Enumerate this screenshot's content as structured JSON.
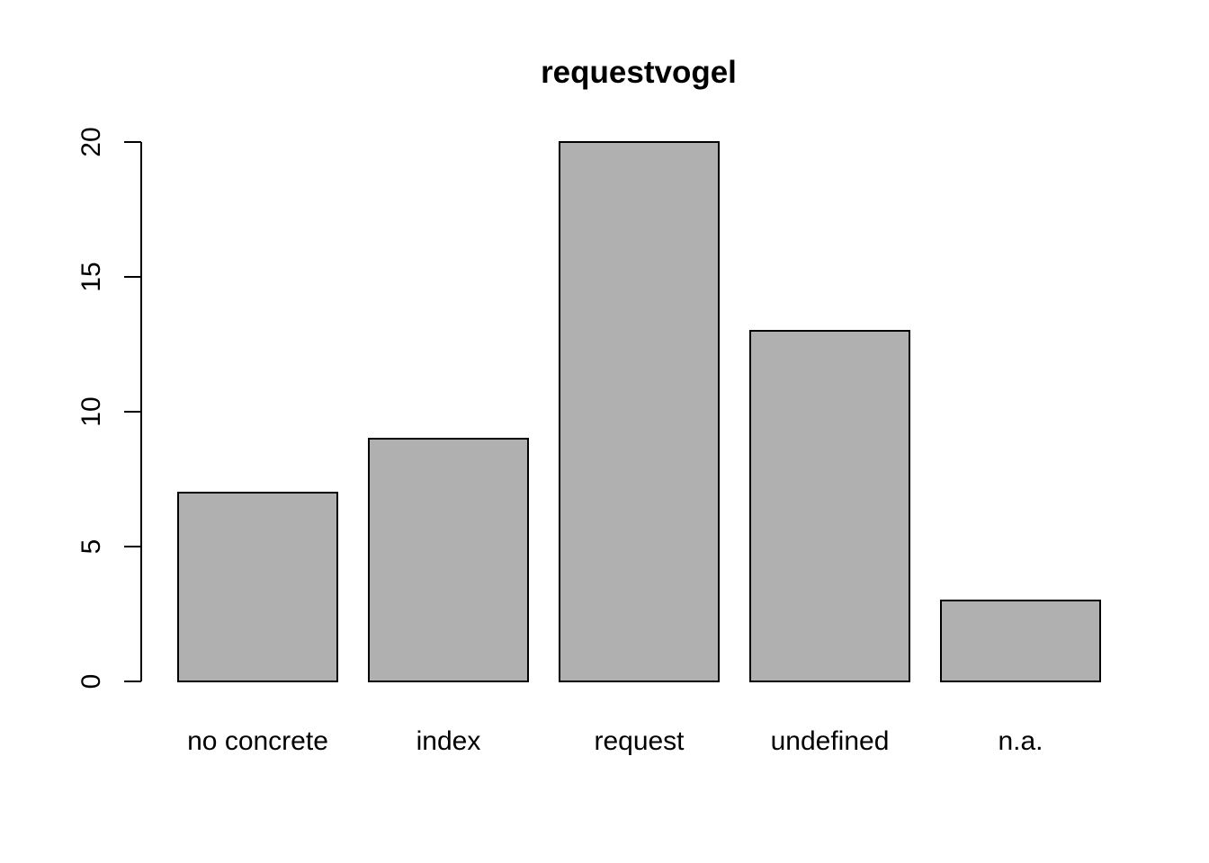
{
  "chart_data": {
    "type": "bar",
    "title": "requestvogel",
    "xlabel": "",
    "ylabel": "",
    "categories": [
      "no concrete",
      "index",
      "request",
      "undefined",
      "n.a."
    ],
    "values": [
      7,
      9,
      20,
      13,
      3
    ],
    "ylim": [
      0,
      20
    ],
    "yticks": [
      "0",
      "5",
      "10",
      "15",
      "20"
    ],
    "grid": false,
    "legend": "none",
    "bar_color": "#b0b0b0"
  }
}
